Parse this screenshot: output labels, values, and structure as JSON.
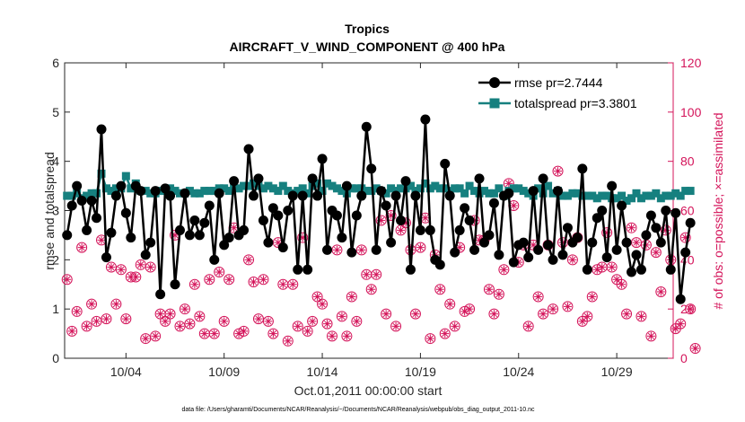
{
  "chart_data": {
    "type": "line",
    "title": "Tropics",
    "subtitle": "AIRCRAFT_V_WIND_COMPONENT @ 400 hPa",
    "xlabel": "Oct.01,2011 00:00:00 start",
    "ylabel": "rmse and totalspread",
    "y2label": "# of obs: o=possible; ×=assimilated",
    "footnote": "data file: /Users/gharamti/Documents/NCAR/Reanalysis/~/Documents/NCAR/Reanalysis/webpub/obs_diag_output_2011-10.nc",
    "xlim": [
      0.5,
      124.5
    ],
    "ylim": [
      0,
      6
    ],
    "y2lim": [
      0,
      120
    ],
    "xticks": [
      {
        "x": 13,
        "label": "10/04"
      },
      {
        "x": 33,
        "label": "10/09"
      },
      {
        "x": 53,
        "label": "10/14"
      },
      {
        "x": 73,
        "label": "10/19"
      },
      {
        "x": 93,
        "label": "10/24"
      },
      {
        "x": 113,
        "label": "10/29"
      }
    ],
    "yticks": [
      0,
      1,
      2,
      3,
      4,
      5,
      6
    ],
    "y2ticks": [
      0,
      20,
      40,
      60,
      80,
      100,
      120
    ],
    "colors": {
      "rmse": "#000000",
      "spread": "#16807f",
      "obs": "#d4145a",
      "axis": "#262626"
    },
    "series": [
      {
        "name": "rmse pr=2.7444",
        "legend": "rmse pr=2.7444",
        "axis": "left",
        "marker": "circle",
        "values": [
          2.5,
          3.1,
          3.5,
          3.2,
          2.6,
          3.2,
          2.85,
          4.65,
          2.05,
          2.55,
          3.3,
          3.5,
          2.95,
          2.45,
          3.5,
          3.4,
          2.1,
          2.35,
          3.4,
          1.3,
          3.45,
          3.3,
          1.5,
          2.6,
          3.35,
          2.5,
          2.8,
          2.5,
          2.75,
          3.1,
          2.0,
          3.35,
          2.3,
          2.45,
          3.6,
          2.5,
          2.6,
          4.25,
          3.3,
          3.65,
          2.8,
          2.35,
          3.05,
          2.9,
          2.25,
          3.0,
          3.3,
          1.8,
          3.3,
          1.8,
          3.65,
          3.3,
          4.05,
          2.2,
          3.0,
          2.9,
          2.45,
          3.5,
          2.15,
          2.9,
          3.3,
          4.7,
          3.85,
          2.2,
          3.4,
          3.1,
          2.35,
          3.3,
          2.8,
          3.6,
          1.8,
          3.3,
          2.6,
          4.85,
          2.6,
          2.0,
          1.9,
          3.95,
          3.3,
          2.15,
          2.6,
          3.05,
          2.8,
          2.2,
          3.65,
          2.35,
          2.5,
          3.15,
          2.1,
          3.3,
          3.35,
          1.95,
          2.3,
          2.35,
          2.05,
          3.4,
          2.2,
          3.65,
          2.3,
          2.0,
          3.4,
          2.1,
          2.65,
          2.35,
          2.45,
          3.85,
          1.8,
          2.35,
          2.85,
          3.0,
          2.05,
          3.5,
          2.2,
          3.1,
          2.35,
          1.75,
          2.1,
          1.8,
          2.5,
          2.9,
          2.65,
          2.35,
          3.0,
          1.8,
          2.95,
          1.2,
          2.15,
          2.75
        ]
      },
      {
        "name": "totalspread pr=3.3801",
        "legend": "totalspread pr=3.3801",
        "axis": "left",
        "marker": "square",
        "values": [
          3.3,
          3.3,
          3.35,
          3.25,
          3.3,
          3.35,
          3.35,
          3.75,
          3.45,
          3.4,
          3.45,
          3.45,
          3.7,
          3.45,
          3.55,
          3.4,
          3.4,
          3.35,
          3.35,
          3.4,
          3.4,
          3.45,
          3.4,
          3.35,
          3.35,
          3.4,
          3.35,
          3.35,
          3.4,
          3.4,
          3.4,
          3.45,
          3.45,
          3.4,
          3.5,
          3.45,
          3.5,
          3.5,
          3.55,
          3.5,
          3.45,
          3.5,
          3.45,
          3.4,
          3.5,
          3.4,
          3.35,
          3.4,
          3.45,
          3.35,
          3.5,
          3.55,
          3.4,
          3.55,
          3.5,
          3.45,
          3.4,
          3.35,
          3.45,
          3.45,
          3.45,
          3.4,
          3.4,
          3.45,
          3.4,
          3.35,
          3.45,
          3.4,
          3.45,
          3.45,
          3.5,
          3.4,
          3.45,
          3.55,
          3.45,
          3.5,
          3.45,
          3.45,
          3.4,
          3.45,
          3.45,
          3.35,
          3.5,
          3.4,
          3.35,
          3.4,
          3.35,
          3.35,
          3.45,
          3.3,
          3.4,
          3.45,
          3.45,
          3.4,
          3.35,
          3.3,
          3.45,
          3.35,
          3.5,
          3.35,
          3.4,
          3.3,
          3.3,
          3.35,
          3.35,
          3.3,
          3.3,
          3.3,
          3.25,
          3.3,
          3.3,
          3.25,
          3.25,
          3.3,
          3.2,
          3.25,
          3.35,
          3.25,
          3.3,
          3.3,
          3.35,
          3.25,
          3.3,
          3.3,
          3.35,
          3.3,
          3.4,
          3.4
        ]
      },
      {
        "name": "obs possible",
        "axis": "right",
        "marker": "open-circle",
        "values": [
          32,
          11,
          19,
          45,
          13,
          22,
          15,
          48,
          16,
          37,
          22,
          36,
          16,
          33,
          33,
          38,
          8,
          37,
          9,
          18,
          15,
          18,
          50,
          13,
          20,
          14,
          30,
          17,
          10,
          32,
          10,
          35,
          15,
          32,
          53,
          10,
          11,
          40,
          31,
          16,
          32,
          15,
          10,
          47,
          30,
          7,
          30,
          13,
          49,
          11,
          15,
          25,
          22,
          14,
          9,
          44,
          17,
          9,
          25,
          15,
          44,
          34,
          28,
          34,
          56,
          18,
          58,
          13,
          52,
          55,
          44,
          18,
          45,
          57,
          8,
          42,
          28,
          10,
          22,
          13,
          45,
          19,
          20,
          56,
          48,
          48,
          28,
          18,
          26,
          36,
          71,
          62,
          39,
          46,
          13,
          46,
          25,
          18,
          46,
          20,
          76,
          47,
          21,
          40,
          49,
          15,
          17,
          25,
          36,
          37,
          51,
          37,
          32,
          30,
          18,
          53,
          47,
          17,
          46,
          9,
          43,
          27,
          52,
          40,
          12,
          14,
          49,
          20,
          4
        ]
      },
      {
        "name": "obs assimilated",
        "axis": "right",
        "marker": "asterisk",
        "values": [
          32,
          11,
          19,
          45,
          13,
          22,
          15,
          48,
          16,
          37,
          22,
          36,
          16,
          33,
          33,
          38,
          8,
          37,
          9,
          18,
          15,
          18,
          50,
          13,
          20,
          14,
          30,
          17,
          10,
          32,
          10,
          35,
          15,
          32,
          53,
          10,
          11,
          40,
          31,
          16,
          32,
          15,
          10,
          47,
          30,
          7,
          30,
          13,
          49,
          11,
          15,
          25,
          22,
          14,
          9,
          44,
          17,
          9,
          25,
          15,
          44,
          34,
          28,
          34,
          56,
          18,
          58,
          13,
          52,
          55,
          44,
          18,
          45,
          57,
          8,
          42,
          28,
          10,
          22,
          13,
          45,
          19,
          20,
          56,
          48,
          48,
          28,
          18,
          26,
          36,
          71,
          62,
          39,
          46,
          13,
          46,
          25,
          18,
          46,
          20,
          76,
          47,
          21,
          40,
          49,
          15,
          17,
          25,
          36,
          37,
          51,
          37,
          32,
          30,
          18,
          53,
          47,
          17,
          46,
          9,
          43,
          27,
          52,
          40,
          12,
          14,
          49,
          20,
          4
        ]
      }
    ]
  }
}
